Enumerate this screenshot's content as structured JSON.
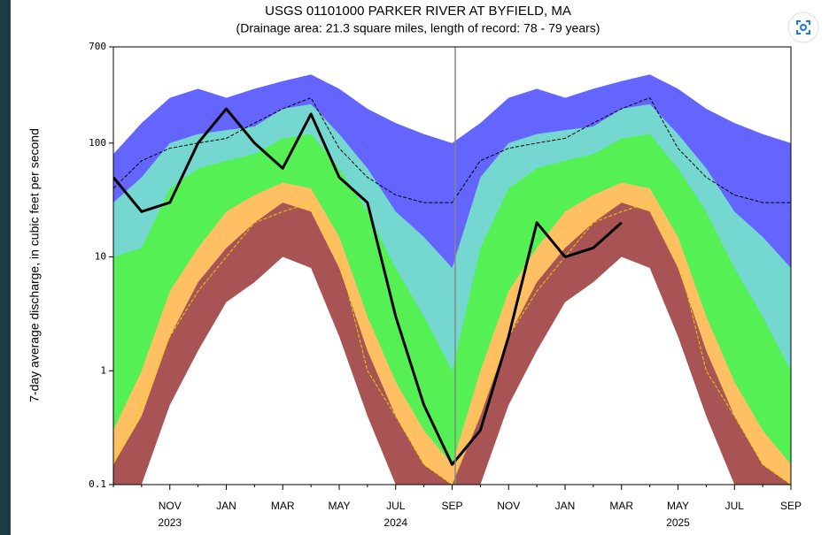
{
  "chart_data": {
    "type": "area",
    "title": "USGS 01101000 PARKER RIVER AT BYFIELD, MA",
    "subtitle": "(Drainage area: 21.3 square miles, length of record: 78 - 79 years)",
    "y_label": "7-day average discharge, in cubic feet per second",
    "categories": [
      null,
      null,
      "NOV",
      null,
      "JAN",
      null,
      "MAR",
      null,
      "MAY",
      null,
      "JUL",
      null,
      "SEP",
      null,
      "NOV",
      null,
      "JAN",
      null,
      "MAR",
      null,
      "MAY",
      null,
      "JUL",
      null,
      "SEP"
    ],
    "year_labels": [
      null,
      null,
      "2023",
      null,
      null,
      null,
      null,
      null,
      null,
      null,
      "2024",
      null,
      null,
      null,
      null,
      null,
      null,
      null,
      null,
      null,
      "2025",
      null,
      null,
      null,
      null
    ],
    "ylim": [
      0.1,
      700
    ],
    "yticks": [
      0.1,
      1,
      10,
      100,
      700
    ],
    "log_y": true,
    "series": [
      {
        "kind": "area",
        "color": "#6464ff",
        "values": [
          80,
          150,
          250,
          300,
          250,
          300,
          350,
          400,
          300,
          200,
          150,
          120,
          100,
          150,
          250,
          300,
          250,
          300,
          350,
          400,
          300,
          200,
          150,
          120,
          100
        ]
      },
      {
        "kind": "area",
        "color": "#74d8d0",
        "values": [
          30,
          50,
          100,
          120,
          130,
          140,
          200,
          220,
          120,
          60,
          25,
          15,
          8,
          50,
          100,
          120,
          130,
          140,
          200,
          220,
          120,
          60,
          25,
          15,
          8
        ]
      },
      {
        "kind": "area",
        "color": "#54f054",
        "values": [
          10,
          12,
          40,
          60,
          70,
          80,
          110,
          120,
          60,
          25,
          8,
          3,
          1,
          12,
          40,
          60,
          70,
          80,
          110,
          120,
          60,
          25,
          8,
          3,
          1
        ]
      },
      {
        "kind": "area",
        "color": "#ffc064",
        "values": [
          0.3,
          1,
          5,
          12,
          25,
          35,
          45,
          40,
          15,
          3,
          0.8,
          0.3,
          0.15,
          1,
          5,
          12,
          25,
          35,
          45,
          40,
          15,
          3,
          0.8,
          0.3,
          0.15
        ]
      },
      {
        "kind": "area",
        "color": "#a85454",
        "values": [
          0.15,
          0.4,
          2,
          6,
          12,
          20,
          30,
          25,
          8,
          1.5,
          0.4,
          0.15,
          0.1,
          0.4,
          2,
          6,
          12,
          20,
          30,
          25,
          8,
          1.5,
          0.4,
          0.15,
          0.1
        ]
      },
      {
        "kind": "area",
        "color": "#ffffff",
        "values": [
          0.1,
          0.1,
          0.5,
          1.5,
          4,
          6,
          10,
          8,
          2,
          0.4,
          0.1,
          0.1,
          0.1,
          0.1,
          0.5,
          1.5,
          4,
          6,
          10,
          8,
          2,
          0.4,
          0.1,
          0.1,
          0.1
        ]
      },
      {
        "kind": "line",
        "dash": true,
        "width": 1,
        "color": "#e8d000",
        "values": [
          0.15,
          0.5,
          2,
          5,
          10,
          20,
          25,
          30,
          10,
          1,
          0.4,
          0.15,
          0.1,
          0.5,
          2,
          5,
          10,
          20,
          25,
          30,
          10,
          1,
          0.4,
          0.15,
          0.1
        ]
      },
      {
        "kind": "line",
        "dash": true,
        "width": 1,
        "color": "#000000",
        "values": [
          40,
          70,
          90,
          100,
          110,
          150,
          200,
          250,
          90,
          50,
          35,
          30,
          30,
          70,
          90,
          100,
          110,
          150,
          200,
          250,
          90,
          50,
          35,
          30,
          30
        ]
      },
      {
        "kind": "line",
        "dash": false,
        "width": 3,
        "color": "#000000",
        "values": [
          50,
          25,
          30,
          100,
          200,
          100,
          60,
          180,
          50,
          30,
          3,
          0.5,
          0.15,
          0.3,
          2,
          20,
          10,
          12,
          20,
          null,
          null,
          null,
          null,
          null,
          null
        ]
      }
    ]
  }
}
